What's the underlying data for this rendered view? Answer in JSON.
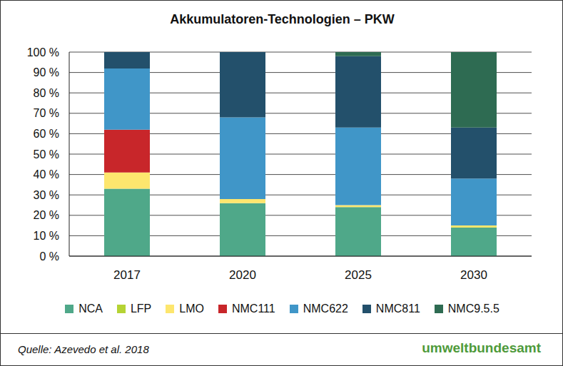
{
  "chart_data": {
    "type": "bar",
    "title": "Akkumulatoren-Technologien – PKW",
    "source": "Quelle: Azevedo et al. 2018",
    "publisher": "umweltbundesamt",
    "categories": [
      "2017",
      "2020",
      "2025",
      "2030"
    ],
    "stacked": true,
    "grid": true,
    "legend": "bottom",
    "ylim": [
      0,
      100
    ],
    "yticks": [
      {
        "value": 0,
        "label": "0 %"
      },
      {
        "value": 10,
        "label": "10 %"
      },
      {
        "value": 20,
        "label": "20 %"
      },
      {
        "value": 30,
        "label": "30 %"
      },
      {
        "value": 40,
        "label": "40 %"
      },
      {
        "value": 50,
        "label": "50 %"
      },
      {
        "value": 60,
        "label": "60 %"
      },
      {
        "value": 70,
        "label": "70 %"
      },
      {
        "value": 80,
        "label": "80 %"
      },
      {
        "value": 90,
        "label": "90 %"
      },
      {
        "value": 100,
        "label": "100 %"
      }
    ],
    "series": [
      {
        "name": "NCA",
        "color": "#4fa889",
        "values": [
          33,
          26,
          24,
          14
        ]
      },
      {
        "name": "LFP",
        "color": "#b5d334",
        "values": [
          0,
          0,
          0,
          0
        ]
      },
      {
        "name": "LMO",
        "color": "#fde66e",
        "values": [
          8,
          2,
          1,
          1
        ]
      },
      {
        "name": "NMC111",
        "color": "#c8262a",
        "values": [
          21,
          0,
          0,
          0
        ]
      },
      {
        "name": "NMC622",
        "color": "#4096c8",
        "values": [
          30,
          40,
          38,
          23
        ]
      },
      {
        "name": "NMC811",
        "color": "#23506b",
        "values": [
          8,
          32,
          35,
          25
        ]
      },
      {
        "name": "NMC9.5.5",
        "color": "#2e6b52",
        "values": [
          0,
          0,
          2,
          37
        ]
      }
    ]
  }
}
